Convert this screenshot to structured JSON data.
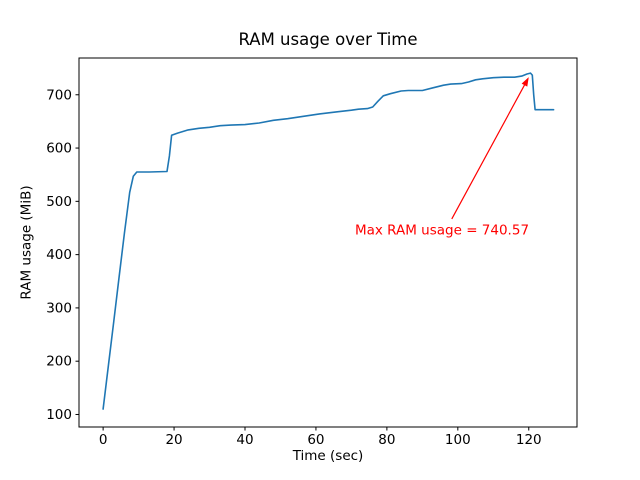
{
  "chart_data": {
    "type": "line",
    "title": "RAM usage over Time",
    "xlabel": "Time (sec)",
    "ylabel": "RAM usage (MiB)",
    "xlim": [
      -6.8,
      133.6
    ],
    "ylim": [
      76.5,
      769
    ],
    "xticks": [
      0,
      20,
      40,
      60,
      80,
      100,
      120
    ],
    "yticks": [
      100,
      200,
      300,
      400,
      500,
      600,
      700
    ],
    "grid": false,
    "legend": "none",
    "background_color": "#ffffff",
    "spine_color": "#000000",
    "series": [
      {
        "name": "RAM usage",
        "color": "#1f77b4",
        "max_value": 740.57,
        "points": [
          [
            0,
            110
          ],
          [
            1.5,
            192
          ],
          [
            3,
            275
          ],
          [
            4.5,
            358
          ],
          [
            6,
            440
          ],
          [
            7.5,
            517
          ],
          [
            8.5,
            547
          ],
          [
            9.5,
            555
          ],
          [
            13,
            555
          ],
          [
            18,
            556
          ],
          [
            18.7,
            585
          ],
          [
            19.3,
            624
          ],
          [
            21,
            628
          ],
          [
            24,
            634
          ],
          [
            27,
            637
          ],
          [
            30,
            639
          ],
          [
            33,
            642
          ],
          [
            36,
            643
          ],
          [
            40,
            644
          ],
          [
            44,
            647
          ],
          [
            48,
            652
          ],
          [
            52,
            655
          ],
          [
            56,
            659
          ],
          [
            61,
            664
          ],
          [
            66,
            668
          ],
          [
            70,
            671
          ],
          [
            72,
            673
          ],
          [
            74.5,
            674
          ],
          [
            76,
            677
          ],
          [
            77.5,
            688
          ],
          [
            79,
            698
          ],
          [
            81,
            702
          ],
          [
            84,
            707
          ],
          [
            86,
            708
          ],
          [
            90,
            708
          ],
          [
            93,
            713
          ],
          [
            96,
            718
          ],
          [
            98,
            720
          ],
          [
            101,
            721
          ],
          [
            103,
            724
          ],
          [
            105,
            728
          ],
          [
            107,
            730
          ],
          [
            110,
            732
          ],
          [
            113,
            733
          ],
          [
            116,
            733
          ],
          [
            118,
            735
          ],
          [
            119.5,
            739
          ],
          [
            120.5,
            740.57
          ],
          [
            121,
            737
          ],
          [
            121.4,
            700
          ],
          [
            121.8,
            672
          ],
          [
            124,
            672
          ],
          [
            127,
            672
          ]
        ]
      }
    ],
    "annotation": {
      "text": "Max RAM usage = 740.57",
      "color": "#ff0000",
      "max_value": 740.57,
      "text_pos": [
        71,
        446
      ],
      "arrow_tail": [
        98.3,
        467
      ],
      "arrow_tip": [
        120,
        733
      ]
    }
  }
}
